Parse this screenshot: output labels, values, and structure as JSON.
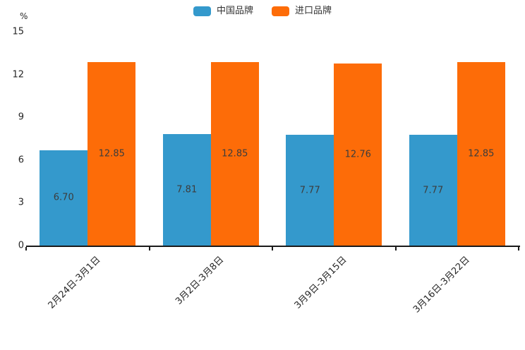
{
  "chart": {
    "y_unit_label": "%"
  },
  "chart_data": {
    "type": "bar",
    "title": "",
    "categories": [
      "2月24日-3月1日",
      "3月2日-3月8日",
      "3月9日-3月15日",
      "3月16日-3月22日"
    ],
    "series": [
      {
        "name": "中国品牌",
        "color": "#3499cc",
        "values": [
          6.7,
          7.81,
          7.77,
          7.77
        ]
      },
      {
        "name": "进口品牌",
        "color": "#fd6c08",
        "values": [
          12.85,
          12.85,
          12.76,
          12.85
        ]
      }
    ],
    "value_label_format": "2-decimals",
    "value_label_position": "inside-center",
    "xlabel": "",
    "ylabel": "%",
    "ylim": [
      0,
      15
    ],
    "yticks": [
      0,
      3,
      6,
      9,
      12,
      15
    ],
    "grid": false,
    "legend_position": "top-center",
    "xtick_rotation": 45,
    "axis_color": "#1a1a1a"
  }
}
